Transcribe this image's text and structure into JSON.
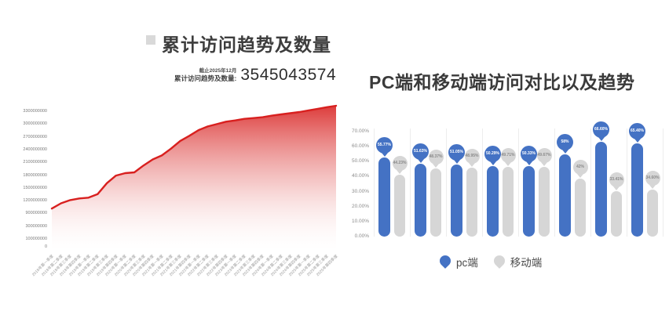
{
  "left": {
    "title": "累计访问趋势及数量",
    "stat": {
      "note": "截止2025年12月",
      "label": "累计访问趋势及数量:",
      "value": "3545043574"
    }
  },
  "right": {
    "title": "PC端和移动端访问对比以及趋势",
    "legend": [
      {
        "label": "pc端",
        "color": "#4472c4"
      },
      {
        "label": "移动端",
        "color": "#d6d6d6"
      }
    ]
  },
  "colors": {
    "red_line": "#d8201f",
    "pc_blue": "#4472c4",
    "mobile_gray": "#d6d6d6",
    "gray_label_text": "#8a8a8a"
  },
  "chart_data": [
    {
      "type": "area",
      "title": "累计访问趋势及数量",
      "x": [
        "2018年第一季度",
        "2018年第二季度",
        "2018年第三季度",
        "2018年第四季度",
        "2019年第一季度",
        "2019年第二季度",
        "2019年第三季度",
        "2019年第四季度",
        "2020年第一季度",
        "2020年第二季度",
        "2020年第三季度",
        "2020年第四季度",
        "2021年第一季度",
        "2021年第二季度",
        "2021年第三季度",
        "2021年第四季度",
        "2022年第一季度",
        "2022年第二季度",
        "2022年第三季度",
        "2022年第四季度",
        "2023年第一季度",
        "2023年第二季度",
        "2023年第三季度",
        "2023年第四季度",
        "2024年第一季度",
        "2024年第二季度",
        "2024年第三季度",
        "2024年第四季度",
        "2025年第一季度",
        "2025年第二季度",
        "2025年第三季度",
        "2025年第四季度"
      ],
      "values": [
        990000000,
        1120000000,
        1200000000,
        1240000000,
        1260000000,
        1350000000,
        1620000000,
        1810000000,
        1870000000,
        1890000000,
        2060000000,
        2210000000,
        2310000000,
        2480000000,
        2670000000,
        2800000000,
        2940000000,
        3030000000,
        3090000000,
        3150000000,
        3180000000,
        3220000000,
        3240000000,
        3260000000,
        3300000000,
        3330000000,
        3360000000,
        3390000000,
        3430000000,
        3470000000,
        3510000000,
        3545043574
      ],
      "y_ticks": [
        "3300000000",
        "3000000000",
        "2700000000",
        "2400000000",
        "2100000000",
        "1800000000",
        "1500000000",
        "1200000000",
        "900000000",
        "300000000",
        "100000000",
        "0"
      ],
      "ylim": [
        0,
        3600000000
      ],
      "grid": false,
      "line_color": "#d8201f",
      "fill_gradient": [
        "#d8201f",
        "#e87f7e",
        "#ffffff"
      ]
    },
    {
      "type": "bar",
      "title": "PC端和移动端访问对比以及趋势",
      "series": [
        {
          "name": "pc端",
          "color": "#4472c4",
          "label_text_color": "#ffffff",
          "values": [
            55.77,
            51.63,
            51.05,
            50.29,
            50.33,
            58,
            66.6,
            65.4
          ],
          "labels": [
            "55.77%",
            "51.63%",
            "51.05%",
            "50.29%",
            "50.33%",
            "58%",
            "66.60%",
            "65.40%"
          ]
        },
        {
          "name": "移动端",
          "color": "#d6d6d6",
          "label_text_color": "#8a8a8a",
          "values": [
            44.23,
            48.37,
            48.95,
            49.71,
            49.67,
            42,
            33.41,
            34.6
          ],
          "labels": [
            "44.23%",
            "48.37%",
            "48.95%",
            "49.71%",
            "49.67%",
            "42%",
            "33.41%",
            "34.60%"
          ]
        }
      ],
      "y_ticks": [
        "70.00%",
        "60.00%",
        "50.00%",
        "40.00%",
        "30.00%",
        "20.00%",
        "10.00%",
        "0.00%"
      ],
      "ylim": [
        0,
        70
      ],
      "grid": "vertical",
      "legend_position": "bottom"
    }
  ]
}
